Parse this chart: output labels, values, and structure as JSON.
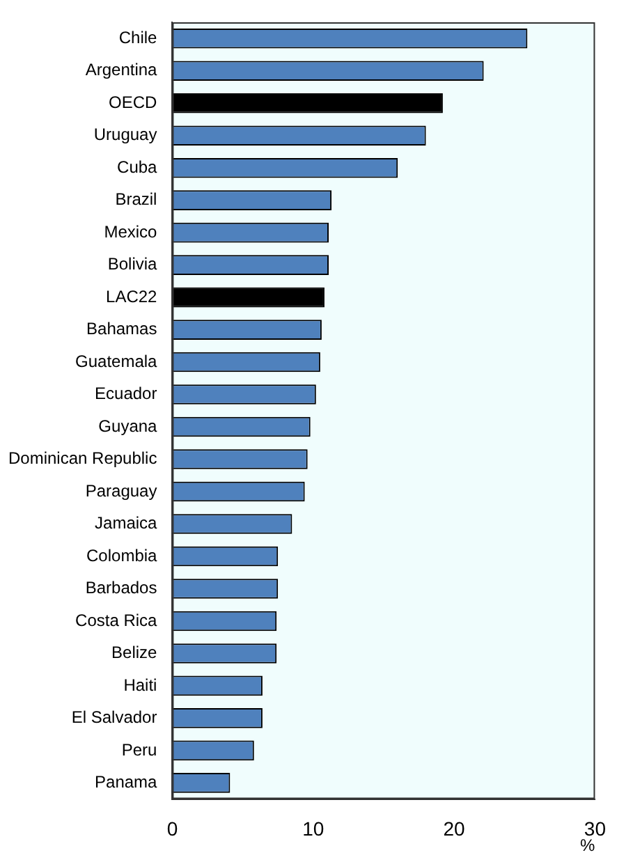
{
  "chart_data": {
    "type": "bar",
    "orientation": "horizontal",
    "xlabel": "%",
    "categories": [
      "Chile",
      "Argentina",
      "OECD",
      "Uruguay",
      "Cuba",
      "Brazil",
      "Mexico",
      "Bolivia",
      "LAC22",
      "Bahamas",
      "Guatemala",
      "Ecuador",
      "Guyana",
      "Dominican Republic",
      "Paraguay",
      "Jamaica",
      "Colombia",
      "Barbados",
      "Costa Rica",
      "Belize",
      "Haiti",
      "El Salvador",
      "Peru",
      "Panama"
    ],
    "values": [
      25.2,
      22.1,
      19.2,
      18.0,
      16.0,
      11.3,
      11.1,
      11.1,
      10.8,
      10.6,
      10.5,
      10.2,
      9.8,
      9.6,
      9.4,
      8.5,
      7.5,
      7.5,
      7.4,
      7.4,
      6.4,
      6.4,
      5.8,
      4.1
    ],
    "colors": [
      "#4f81bd",
      "#4f81bd",
      "#000000",
      "#4f81bd",
      "#4f81bd",
      "#4f81bd",
      "#4f81bd",
      "#4f81bd",
      "#000000",
      "#4f81bd",
      "#4f81bd",
      "#4f81bd",
      "#4f81bd",
      "#4f81bd",
      "#4f81bd",
      "#4f81bd",
      "#4f81bd",
      "#4f81bd",
      "#4f81bd",
      "#4f81bd",
      "#4f81bd",
      "#4f81bd",
      "#4f81bd",
      "#4f81bd"
    ],
    "xlim": [
      0,
      30
    ],
    "xticks": [
      0,
      10,
      20,
      30
    ],
    "grid": false,
    "legend": false
  }
}
